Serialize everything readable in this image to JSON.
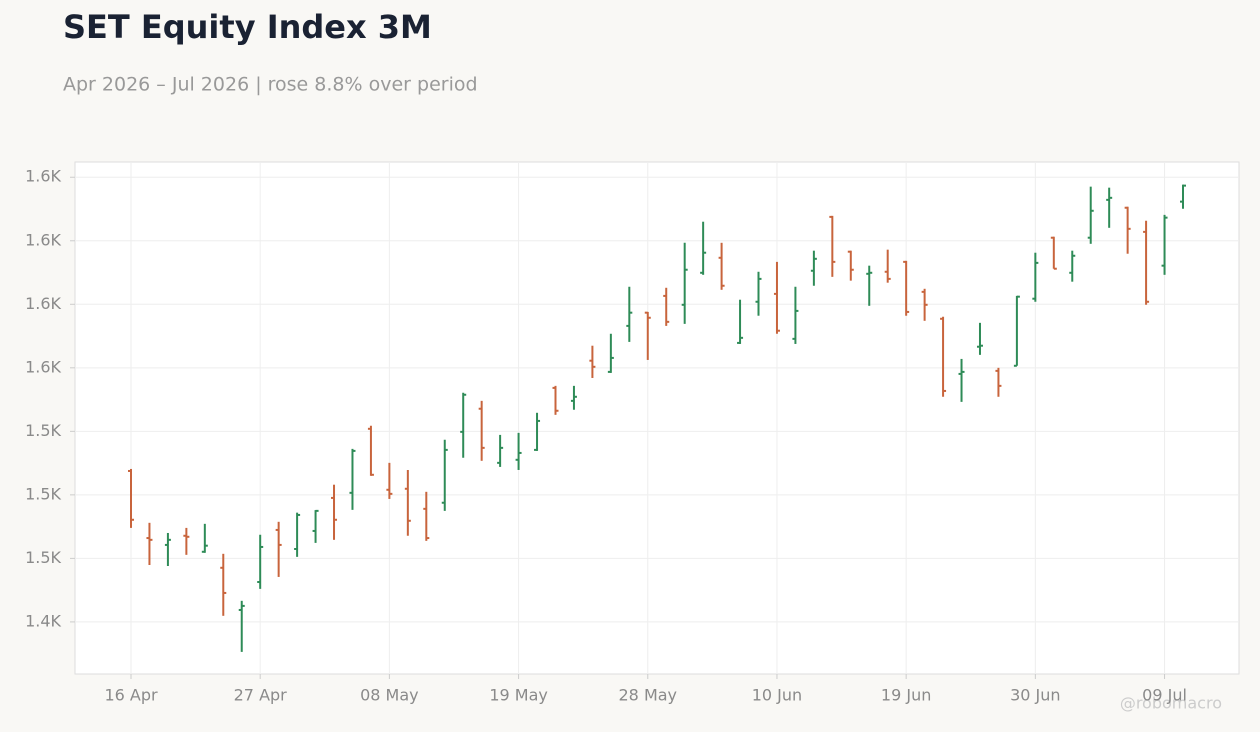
{
  "chart_data": {
    "type": "ohlc",
    "title": "SET Equity Index 3M",
    "subtitle": "Apr 2026 – Jul 2026 | rose 8.8% over period",
    "watermark": "@robomacro",
    "categories": [
      "16 Apr",
      null,
      null,
      null,
      null,
      null,
      null,
      "27 Apr",
      null,
      null,
      null,
      null,
      null,
      null,
      "08 May",
      null,
      null,
      null,
      null,
      null,
      null,
      "19 May",
      null,
      null,
      null,
      null,
      null,
      null,
      "28 May",
      null,
      null,
      null,
      null,
      null,
      null,
      "10 Jun",
      null,
      null,
      null,
      null,
      null,
      null,
      "19 Jun",
      null,
      null,
      null,
      null,
      null,
      null,
      "30 Jun",
      null,
      null,
      null,
      null,
      null,
      null,
      "09 Jul",
      null
    ],
    "open": [
      1509.4,
      1483,
      1480.3,
      1483.9,
      1477.6,
      1471.3,
      1454.7,
      1465.7,
      1486.2,
      1478.7,
      1485.8,
      1498.8,
      1500.8,
      1526,
      1502,
      1502.4,
      1494.5,
      1496.9,
      1524.8,
      1533.9,
      1512.6,
      1513.8,
      1517.7,
      1542.1,
      1537,
      1552.8,
      1548.4,
      1566.5,
      1571.7,
      1578.3,
      1574.8,
      1587.4,
      1593.3,
      1559.8,
      1576,
      1579.1,
      1561.4,
      1588.2,
      1609.4,
      1595.7,
      1587,
      1587.8,
      1591.7,
      1579.9,
      1569.3,
      1547.6,
      1558.3,
      1548.8,
      1550.8,
      1577.2,
      1601.2,
      1587.4,
      1601.2,
      1616.1,
      1613,
      1603.5,
      1590.2,
      1615.4
    ],
    "high": [
      1510.2,
      1489,
      1485,
      1487,
      1488.6,
      1476.8,
      1458.3,
      1484.3,
      1489.4,
      1493,
      1494,
      1504,
      1518.1,
      1527.2,
      1512.6,
      1509.8,
      1501.2,
      1521.7,
      1540.2,
      1537,
      1523.6,
      1524.4,
      1532.3,
      1542.9,
      1542.9,
      1558.7,
      1563.4,
      1581.9,
      1572,
      1581.5,
      1599.2,
      1607.5,
      1599.2,
      1576.8,
      1587.8,
      1591.7,
      1581.9,
      1596.1,
      1609.8,
      1596.1,
      1590.2,
      1596.5,
      1592.1,
      1581.1,
      1570.1,
      1553.5,
      1567.7,
      1550,
      1578.3,
      1595.3,
      1601.6,
      1596.1,
      1621.3,
      1620.9,
      1613.4,
      1607.9,
      1610.2,
      1622.1
    ],
    "low": [
      1487,
      1472.4,
      1472,
      1476.4,
      1477.2,
      1452.4,
      1438.2,
      1463,
      1467.7,
      1475.6,
      1481.1,
      1482.3,
      1494.1,
      1507.5,
      1498.4,
      1483.9,
      1481.9,
      1493.7,
      1514.6,
      1513.4,
      1511,
      1509.8,
      1517.3,
      1531.5,
      1533.5,
      1546,
      1548,
      1560.2,
      1553.1,
      1566.5,
      1567.3,
      1586.6,
      1580.7,
      1559.4,
      1570.5,
      1563.4,
      1559.4,
      1582.3,
      1585.8,
      1584.3,
      1574.4,
      1583.5,
      1570.5,
      1568.5,
      1538.6,
      1536.6,
      1555.1,
      1538.6,
      1550.8,
      1576,
      1589,
      1583.9,
      1598.8,
      1605.1,
      1594.9,
      1574.8,
      1586.6,
      1612.6
    ],
    "close": [
      1490.2,
      1482.3,
      1482.3,
      1483.5,
      1480,
      1461.4,
      1456.3,
      1479.5,
      1480.3,
      1492.1,
      1493.7,
      1490.2,
      1517.3,
      1507.9,
      1500.4,
      1489.8,
      1483,
      1517.7,
      1539.4,
      1518.5,
      1518.5,
      1516.5,
      1529.1,
      1533.1,
      1538.6,
      1550.4,
      1553.9,
      1571.7,
      1569.7,
      1568.1,
      1588.6,
      1595.3,
      1582.3,
      1561.8,
      1585,
      1564.6,
      1572.4,
      1592.9,
      1591.7,
      1588.6,
      1587.4,
      1585,
      1572,
      1574.8,
      1540.9,
      1548.4,
      1558.7,
      1542.9,
      1578,
      1591.3,
      1589,
      1594.1,
      1611.8,
      1616.9,
      1604.7,
      1576,
      1609.1,
      1621.7
    ],
    "up_color": "#2e8b57",
    "down_color": "#c8643c",
    "ylim": [
      1429.5,
      1631
    ],
    "yticks": [
      {
        "value": 1450,
        "label": "1.4K"
      },
      {
        "value": 1475,
        "label": "1.5K"
      },
      {
        "value": 1500,
        "label": "1.5K"
      },
      {
        "value": 1525,
        "label": "1.5K"
      },
      {
        "value": 1550,
        "label": "1.6K"
      },
      {
        "value": 1575,
        "label": "1.6K"
      },
      {
        "value": 1600,
        "label": "1.6K"
      },
      {
        "value": 1625,
        "label": "1.6K"
      }
    ],
    "grid": true
  }
}
